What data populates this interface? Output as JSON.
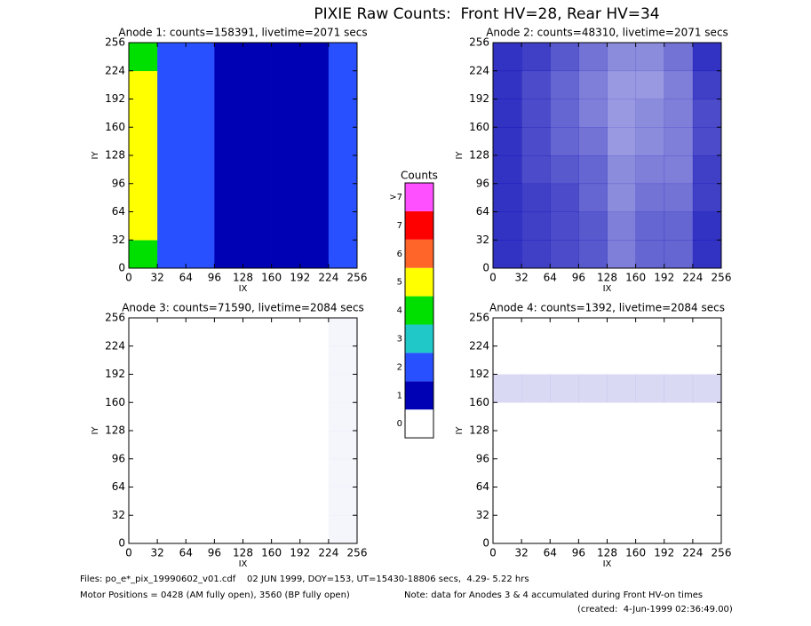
{
  "title": "PIXIE Raw Counts:  Front HV=28, Rear HV=34",
  "colorbar": {
    "title": "Counts",
    "labels": [
      "0",
      "1",
      "2",
      "3",
      "4",
      "5",
      "6",
      "7",
      ">7"
    ],
    "colors": [
      "#ffffff",
      "#0000b4",
      "#2850ff",
      "#20c8c8",
      "#00e000",
      "#ffff00",
      "#ff6428",
      "#ff0000",
      "#ff50ff"
    ]
  },
  "chart_data": [
    {
      "type": "heatmap",
      "title": "Anode 1: counts=158391, livetime=2071 secs",
      "xlabel": "IX",
      "ylabel": "IY",
      "xlim": [
        0,
        256
      ],
      "ylim": [
        0,
        256
      ],
      "xticks": [
        0,
        32,
        64,
        96,
        128,
        160,
        192,
        224,
        256
      ],
      "yticks": [
        0,
        32,
        64,
        96,
        128,
        160,
        192,
        224,
        256
      ],
      "z": [
        [
          4.5,
          2.2,
          2,
          1.8,
          1.3,
          1.6,
          1.6,
          2
        ],
        [
          5,
          2.2,
          2,
          1.8,
          1.3,
          1.6,
          1.6,
          2
        ],
        [
          5,
          2.3,
          2,
          1.8,
          1.3,
          1.6,
          1.5,
          2
        ],
        [
          5,
          2.3,
          2,
          1.8,
          1.3,
          1.6,
          1.5,
          2
        ],
        [
          5,
          2.4,
          2.1,
          1.9,
          1.3,
          1.6,
          1.5,
          2
        ],
        [
          5,
          2.4,
          2.1,
          1.9,
          1.3,
          1.6,
          1.5,
          2
        ],
        [
          5,
          2.4,
          2.1,
          1.9,
          1.3,
          1.6,
          1.5,
          2
        ],
        [
          4.5,
          2.3,
          2,
          1.8,
          1.2,
          1.5,
          1.4,
          2
        ]
      ]
    },
    {
      "type": "heatmap",
      "title": "Anode 2: counts=48310, livetime=2071 secs",
      "xlabel": "IX",
      "ylabel": "IY",
      "xlim": [
        0,
        256
      ],
      "ylim": [
        0,
        256
      ],
      "xticks": [
        0,
        32,
        64,
        96,
        128,
        160,
        192,
        224,
        256
      ],
      "yticks": [
        0,
        32,
        64,
        96,
        128,
        160,
        192,
        224,
        256
      ],
      "z": [
        [
          0.8,
          0.75,
          0.7,
          0.65,
          0.5,
          0.6,
          0.6,
          0.8
        ],
        [
          0.8,
          0.75,
          0.7,
          0.65,
          0.5,
          0.6,
          0.6,
          0.8
        ],
        [
          0.8,
          0.75,
          0.7,
          0.6,
          0.45,
          0.55,
          0.55,
          0.75
        ],
        [
          0.8,
          0.7,
          0.65,
          0.6,
          0.45,
          0.5,
          0.5,
          0.75
        ],
        [
          0.8,
          0.7,
          0.6,
          0.55,
          0.4,
          0.45,
          0.5,
          0.7
        ],
        [
          0.8,
          0.7,
          0.6,
          0.5,
          0.4,
          0.45,
          0.5,
          0.7
        ],
        [
          0.8,
          0.7,
          0.6,
          0.5,
          0.4,
          0.4,
          0.5,
          0.75
        ],
        [
          0.8,
          0.75,
          0.65,
          0.55,
          0.45,
          0.45,
          0.55,
          0.8
        ]
      ]
    },
    {
      "type": "heatmap",
      "title": "Anode 3: counts=71590, livetime=2084 secs",
      "xlabel": "IX",
      "ylabel": "IY",
      "xlim": [
        0,
        256
      ],
      "ylim": [
        0,
        256
      ],
      "xticks": [
        0,
        32,
        64,
        96,
        128,
        160,
        192,
        224,
        256
      ],
      "yticks": [
        0,
        32,
        64,
        96,
        128,
        160,
        192,
        224,
        256
      ],
      "z": [
        [
          0,
          0,
          0,
          0,
          0,
          0,
          0,
          0.04
        ],
        [
          0,
          0,
          0,
          0,
          0,
          0,
          0,
          0.04
        ],
        [
          0,
          0,
          0,
          0,
          0,
          0,
          0,
          0.04
        ],
        [
          0,
          0,
          0,
          0,
          0,
          0,
          0,
          0.04
        ],
        [
          0,
          0,
          0,
          0,
          0,
          0,
          0,
          0.04
        ],
        [
          0,
          0,
          0,
          0,
          0,
          0,
          0,
          0.04
        ],
        [
          0,
          0,
          0,
          0,
          0,
          0,
          0,
          0.04
        ],
        [
          0,
          0,
          0,
          0,
          0,
          0,
          0,
          0.04
        ]
      ]
    },
    {
      "type": "heatmap",
      "title": "Anode 4: counts=1392, livetime=2084 secs",
      "xlabel": "IX",
      "ylabel": "IY",
      "xlim": [
        0,
        256
      ],
      "ylim": [
        0,
        256
      ],
      "xticks": [
        0,
        32,
        64,
        96,
        128,
        160,
        192,
        224,
        256
      ],
      "yticks": [
        0,
        32,
        64,
        96,
        128,
        160,
        192,
        224,
        256
      ],
      "z": [
        [
          0,
          0,
          0,
          0,
          0,
          0,
          0,
          0
        ],
        [
          0,
          0,
          0,
          0,
          0,
          0,
          0,
          0
        ],
        [
          0,
          0,
          0,
          0,
          0,
          0,
          0,
          0
        ],
        [
          0,
          0,
          0,
          0,
          0,
          0,
          0,
          0
        ],
        [
          0,
          0,
          0,
          0,
          0,
          0,
          0,
          0
        ],
        [
          0.15,
          0.15,
          0.15,
          0.15,
          0.15,
          0.15,
          0.15,
          0.15
        ],
        [
          0,
          0,
          0,
          0,
          0,
          0,
          0,
          0
        ],
        [
          0,
          0,
          0,
          0,
          0,
          0,
          0,
          0
        ]
      ]
    }
  ],
  "footer": {
    "files": "Files: po_e*_pix_19990602_v01.cdf    02 JUN 1999, DOY=153, UT=15430-18806 secs,  4.29- 5.22 hrs",
    "motor": "Motor Positions = 0428 (AM fully open), 3560 (BP fully open)",
    "note": "Note: data for Anodes 3 & 4 accumulated during Front HV-on times",
    "created": "(created:  4-Jun-1999 02:36:49.00)"
  }
}
